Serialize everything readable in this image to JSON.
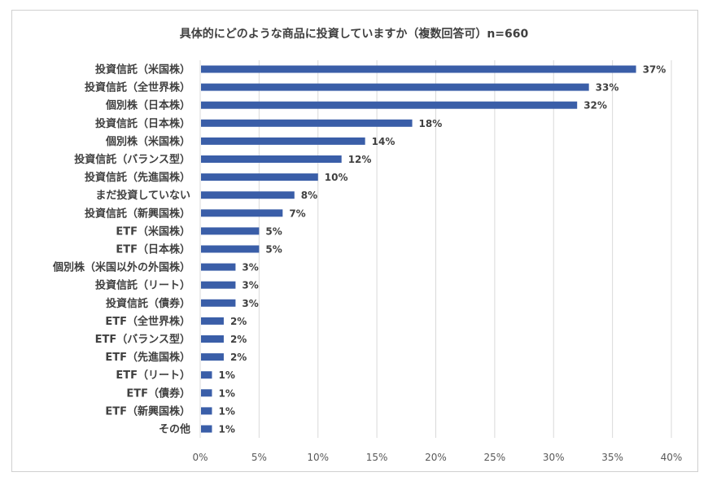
{
  "chart_data": {
    "type": "bar",
    "orientation": "horizontal",
    "title": "具体的にどのような商品に投資していますか（複数回答可）n=660",
    "categories": [
      "投資信託（米国株）",
      "投資信託（全世界株）",
      "個別株（日本株）",
      "投資信託（日本株）",
      "個別株（米国株）",
      "投資信託（バランス型）",
      "投資信託（先進国株）",
      "まだ投資していない",
      "投資信託（新興国株）",
      "ETF（米国株）",
      "ETF（日本株）",
      "個別株（米国以外の外国株）",
      "投資信託（リート）",
      "投資信託（債券）",
      "ETF（全世界株）",
      "ETF（バランス型）",
      "ETF（先進国株）",
      "ETF（リート）",
      "ETF（債券）",
      "ETF（新興国株）",
      "その他"
    ],
    "values": [
      37,
      33,
      32,
      18,
      14,
      12,
      10,
      8,
      7,
      5,
      5,
      3,
      3,
      3,
      2,
      2,
      2,
      1,
      1,
      1,
      1
    ],
    "value_labels": [
      "37%",
      "33%",
      "32%",
      "18%",
      "14%",
      "12%",
      "10%",
      "8%",
      "7%",
      "5%",
      "5%",
      "3%",
      "3%",
      "3%",
      "2%",
      "2%",
      "2%",
      "1%",
      "1%",
      "1%",
      "1%"
    ],
    "xlim": [
      0,
      40
    ],
    "xticks": [
      "0%",
      "5%",
      "10%",
      "15%",
      "20%",
      "25%",
      "30%",
      "35%",
      "40%"
    ],
    "grid": "vertical",
    "bar_color": "#3a5ea8",
    "grid_color": "#d9d9d9"
  }
}
